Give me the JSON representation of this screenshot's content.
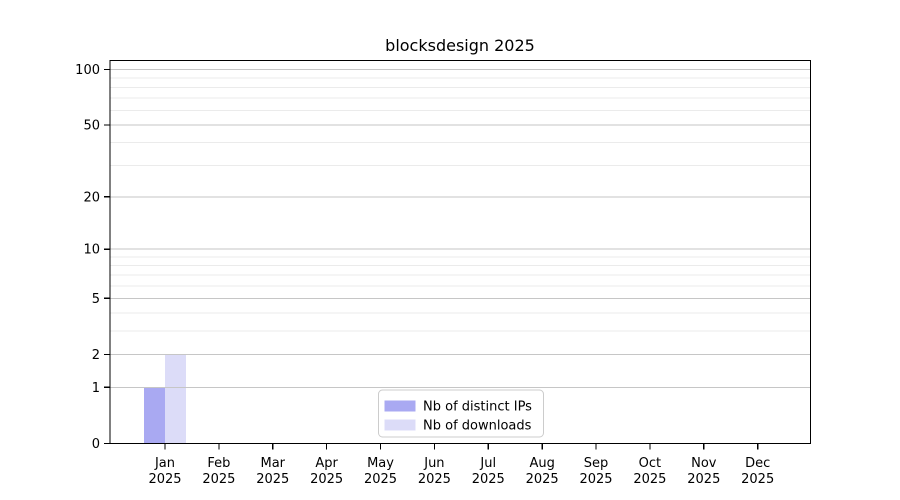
{
  "chart_data": {
    "type": "bar",
    "title": "blocksdesign 2025",
    "x_ticks": [
      {
        "month": "Jan",
        "year": "2025"
      },
      {
        "month": "Feb",
        "year": "2025"
      },
      {
        "month": "Mar",
        "year": "2025"
      },
      {
        "month": "Apr",
        "year": "2025"
      },
      {
        "month": "May",
        "year": "2025"
      },
      {
        "month": "Jun",
        "year": "2025"
      },
      {
        "month": "Jul",
        "year": "2025"
      },
      {
        "month": "Aug",
        "year": "2025"
      },
      {
        "month": "Sep",
        "year": "2025"
      },
      {
        "month": "Oct",
        "year": "2025"
      },
      {
        "month": "Nov",
        "year": "2025"
      },
      {
        "month": "Dec",
        "year": "2025"
      }
    ],
    "series": [
      {
        "name": "Nb of distinct IPs",
        "color": "#a9a9f2",
        "values": [
          1,
          0,
          0,
          0,
          0,
          0,
          0,
          0,
          0,
          0,
          0,
          0
        ]
      },
      {
        "name": "Nb of downloads",
        "color": "#dcdcf8",
        "values": [
          2,
          0,
          0,
          0,
          0,
          0,
          0,
          0,
          0,
          0,
          0,
          0
        ]
      }
    ],
    "y_axis": {
      "scale": "log1p",
      "ticks": [
        100,
        50,
        20,
        10,
        5,
        2,
        1,
        0
      ],
      "minor_ticks": [
        3,
        4,
        6,
        7,
        8,
        9,
        30,
        40,
        60,
        70,
        80,
        90
      ],
      "range": [
        0,
        112
      ]
    },
    "grid": {
      "shown": true,
      "major_color": "#c6c6c6",
      "minor_color": "#ebebeb"
    },
    "legend": {
      "position": "lower center",
      "border_color": "#cccccc",
      "background": "#ffffff"
    },
    "axis_color": "#000000"
  }
}
